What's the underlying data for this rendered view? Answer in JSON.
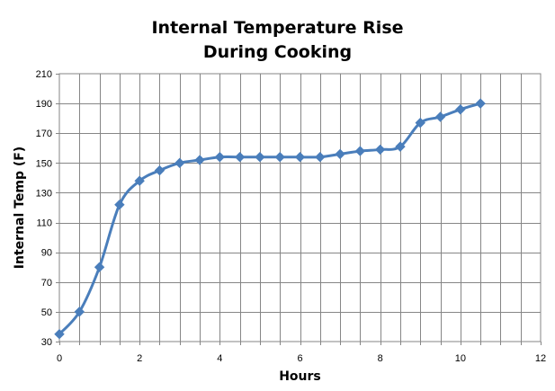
{
  "chart_data": {
    "type": "line",
    "title_lines": [
      "Internal Temperature Rise",
      "During Cooking"
    ],
    "xlabel": "Hours",
    "ylabel": "Internal Temp (F)",
    "xlim": [
      0,
      12
    ],
    "ylim": [
      30,
      210
    ],
    "x_ticks": [
      "0",
      "2",
      "4",
      "6",
      "8",
      "10",
      "12"
    ],
    "y_ticks": [
      "30",
      "50",
      "70",
      "90",
      "110",
      "130",
      "150",
      "170",
      "190",
      "210"
    ],
    "grid": true,
    "minor_x_gridline_step": 0.5,
    "series": [
      {
        "color": "#4a7ebb",
        "marker": "diamond",
        "smooth": true,
        "x": [
          0,
          0.5,
          1,
          1.5,
          2,
          2.5,
          3,
          3.5,
          4,
          4.5,
          5,
          5.5,
          6,
          6.5,
          7,
          7.5,
          8,
          8.5,
          9,
          9.5,
          10,
          10.5
        ],
        "y": [
          35,
          50,
          80,
          122,
          138,
          145,
          150,
          152,
          154,
          154,
          154,
          154,
          154,
          154,
          156,
          158,
          159,
          161,
          177,
          181,
          186,
          190
        ]
      }
    ]
  }
}
